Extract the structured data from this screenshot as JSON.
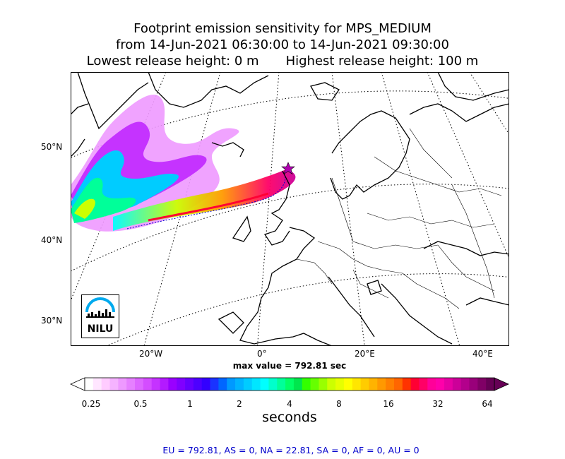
{
  "title": {
    "line1": "Footprint emission sensitivity for MPS_MEDIUM",
    "line2": "from 14-Jun-2021 06:30:00 to 14-Jun-2021 09:30:00",
    "lowest": "Lowest release height: 0 m",
    "highest": "Highest release height: 100 m"
  },
  "map": {
    "lat_labels": [
      "50°N",
      "40°N",
      "30°N"
    ],
    "lon_labels": [
      "20°W",
      "0°",
      "20°E",
      "40°E"
    ],
    "release_marker": "magenta-star",
    "logo_text": "NILU"
  },
  "max_value": "max value = 792.81 sec",
  "colorbar": {
    "ticks": [
      "0.25",
      "0.5",
      "1",
      "2",
      "4",
      "8",
      "16",
      "32",
      "64"
    ],
    "label": "seconds",
    "colors": [
      "#ffffff",
      "#ffe6ff",
      "#ffccff",
      "#f5b3ff",
      "#ee99ff",
      "#e680ff",
      "#dd66ff",
      "#d44dff",
      "#c533ff",
      "#b31aff",
      "#9900ff",
      "#8000ff",
      "#6600ff",
      "#4d00ff",
      "#3300ff",
      "#1a33ff",
      "#0066ff",
      "#0099ff",
      "#00b3ff",
      "#00ccff",
      "#00e6ff",
      "#00ffff",
      "#00ffcc",
      "#00ff99",
      "#00ff66",
      "#00e64d",
      "#33ff00",
      "#66ff00",
      "#99ff00",
      "#ccff00",
      "#e6ff00",
      "#ffff00",
      "#ffe600",
      "#ffcc00",
      "#ffb300",
      "#ff9900",
      "#ff8000",
      "#ff6600",
      "#ff3300",
      "#ff0033",
      "#ff0066",
      "#ff0099",
      "#ff00aa",
      "#e600a3",
      "#cc0099",
      "#b3008c",
      "#99007a",
      "#800066",
      "#660055"
    ]
  },
  "stats": "EU = 792.81,  AS = 0,  NA = 22.81,  SA = 0,  AF = 0,  AU = 0"
}
